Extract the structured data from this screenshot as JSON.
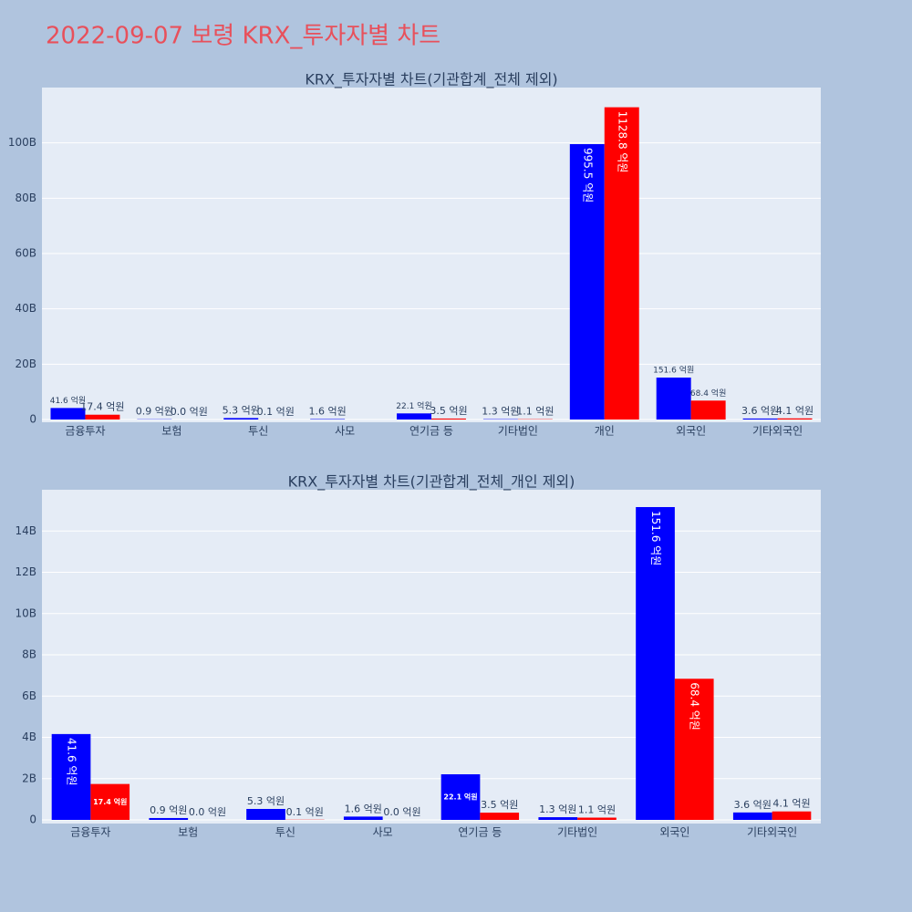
{
  "title": "2022-09-07 보령 KRX_투자자별 차트",
  "chart_data": [
    {
      "type": "bar",
      "title": "KRX_투자자별 차트(기관합계_전체 제외)",
      "categories": [
        "금융투자",
        "보험",
        "투신",
        "사모",
        "연기금 등",
        "기타법인",
        "개인",
        "외국인",
        "기타외국인"
      ],
      "series": [
        {
          "color": "#0000ff",
          "values": [
            4160000000,
            90000000,
            530000000,
            160000000,
            2210000000,
            130000000,
            99550000000,
            15160000000,
            360000000
          ],
          "value_labels": [
            "41.6 억원",
            "0.9 억원",
            "5.3 억원",
            "1.6 억원",
            "22.1 억원",
            "1.3 억원",
            "995.5 억원",
            "151.6 억원",
            "3.6 억원"
          ]
        },
        {
          "color": "#ff0000",
          "values": [
            1740000000,
            0,
            10000000,
            null,
            350000000,
            110000000,
            112880000000,
            6840000000,
            410000000
          ],
          "value_labels": [
            "17.4 억원",
            "0.0 억원",
            "0.1 억원",
            null,
            "3.5 억원",
            "1.1 억원",
            "1128.8 억원",
            "68.4 억원",
            "4.1 억원"
          ]
        }
      ],
      "ylim": [
        0,
        120000000000
      ],
      "yticks": [
        0,
        {
          "value": 20000000000,
          "label": "20B"
        },
        {
          "value": 40000000000,
          "label": "40B"
        },
        {
          "value": 60000000000,
          "label": "60B"
        },
        {
          "value": 80000000000,
          "label": "80B"
        },
        {
          "value": 100000000000,
          "label": "100B"
        }
      ],
      "grid": true
    },
    {
      "type": "bar",
      "title": "KRX_투자자별 차트(기관합계_전체_개인 제외)",
      "categories": [
        "금융투자",
        "보험",
        "투신",
        "사모",
        "연기금 등",
        "기타법인",
        "외국인",
        "기타외국인"
      ],
      "series": [
        {
          "color": "#0000ff",
          "values": [
            4160000000,
            90000000,
            530000000,
            160000000,
            2210000000,
            130000000,
            15160000000,
            360000000
          ],
          "value_labels": [
            "41.6 억원",
            "0.9 억원",
            "5.3 억원",
            "1.6 억원",
            "22.1 억원",
            "1.3 억원",
            "151.6 억원",
            "3.6 억원"
          ]
        },
        {
          "color": "#ff0000",
          "values": [
            1740000000,
            0,
            10000000,
            0,
            350000000,
            110000000,
            6840000000,
            410000000
          ],
          "value_labels": [
            "17.4 억원",
            "0.0 억원",
            "0.1 억원",
            "0.0 억원",
            "3.5 억원",
            "1.1 억원",
            "68.4 억원",
            "4.1 억원"
          ]
        }
      ],
      "ylim": [
        0,
        16000000000
      ],
      "yticks": [
        0,
        {
          "value": 2000000000,
          "label": "2B"
        },
        {
          "value": 4000000000,
          "label": "4B"
        },
        {
          "value": 6000000000,
          "label": "6B"
        },
        {
          "value": 8000000000,
          "label": "8B"
        },
        {
          "value": 10000000000,
          "label": "10B"
        },
        {
          "value": 12000000000,
          "label": "12B"
        },
        {
          "value": 14000000000,
          "label": "14B"
        }
      ],
      "grid": true
    }
  ]
}
